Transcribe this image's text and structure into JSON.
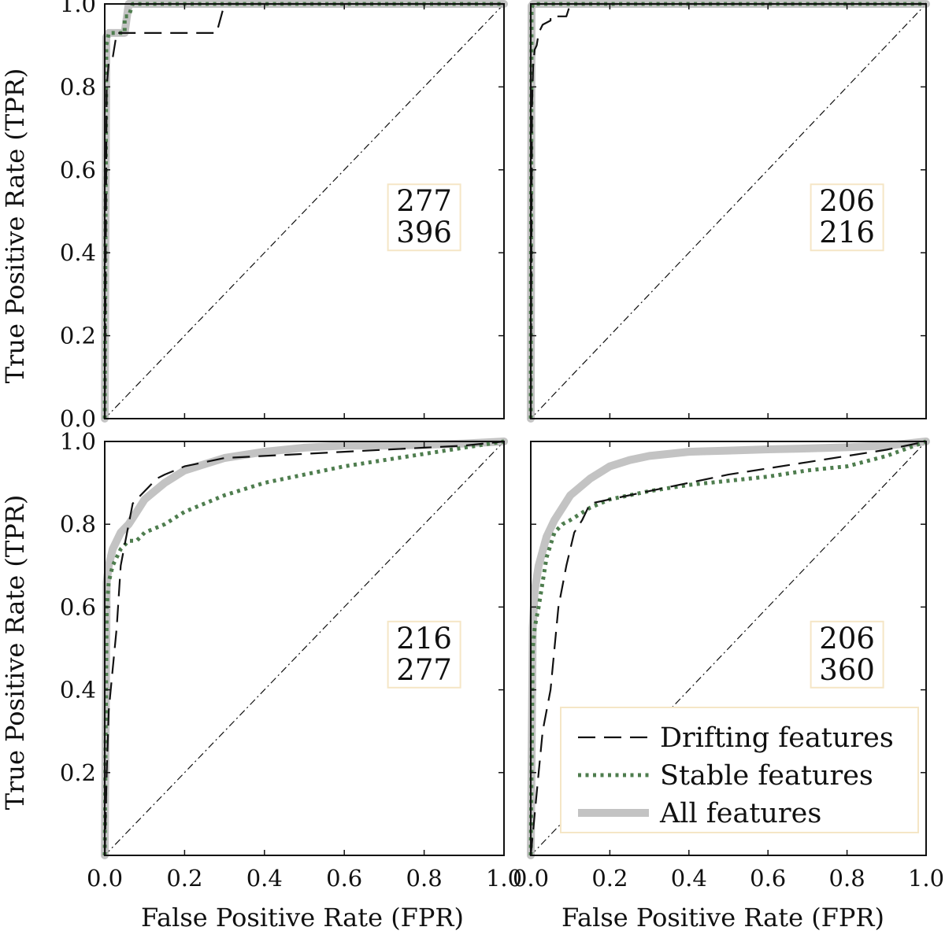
{
  "figure": {
    "colors": {
      "drifting": "#111111",
      "stable": "#4e7d4e",
      "all": "#bdbdbd",
      "diagonal": "#111111",
      "annot_border": "#f5e6c6",
      "ref_line": "#c9d3e3"
    },
    "shared_x_ticks": [
      "0.0",
      "0.2",
      "0.4",
      "0.6",
      "0.8",
      "1.0"
    ],
    "left_y_ticks_top": [
      "0.0",
      "0.2",
      "0.4",
      "0.6",
      "0.8",
      "1.0"
    ],
    "left_y_ticks_bottom": [
      "0.2",
      "0.4",
      "0.6",
      "0.8",
      "1.0"
    ],
    "xlabel": "False Positive Rate (FPR)",
    "ylabel": "True Positive Rate (TPR)",
    "legend": {
      "placement": "lower-right of bottom-right panel",
      "entries": [
        {
          "label": "Drifting features",
          "series": "drifting"
        },
        {
          "label": "Stable features",
          "series": "stable"
        },
        {
          "label": "All features",
          "series": "all"
        }
      ]
    }
  },
  "chart_data": [
    {
      "type": "line",
      "panel": "top-left",
      "annotation": [
        "277",
        "396"
      ],
      "xlim": [
        0,
        1
      ],
      "ylim": [
        0,
        1
      ],
      "diagonal": true,
      "series": [
        {
          "name": "Drifting features",
          "key": "drifting",
          "x": [
            0,
            0.005,
            0.01,
            0.012,
            0.02,
            0.03,
            0.06,
            0.28,
            0.3,
            1.0
          ],
          "y": [
            0,
            0.8,
            0.86,
            0.86,
            0.87,
            0.93,
            0.93,
            0.93,
            1.0,
            1.0
          ]
        },
        {
          "name": "Stable features",
          "key": "stable",
          "x": [
            0,
            0.004,
            0.01,
            0.05,
            0.05,
            0.06,
            0.07,
            1.0
          ],
          "y": [
            0,
            0.9,
            0.93,
            0.93,
            0.97,
            0.97,
            1.0,
            1.0
          ]
        },
        {
          "name": "All features",
          "key": "all",
          "x": [
            0,
            0.004,
            0.01,
            0.05,
            0.06,
            1.0
          ],
          "y": [
            0,
            0.92,
            0.93,
            0.93,
            1.0,
            1.0
          ]
        }
      ]
    },
    {
      "type": "line",
      "panel": "top-right",
      "annotation": [
        "206",
        "216"
      ],
      "xlim": [
        0,
        1
      ],
      "ylim": [
        0,
        1
      ],
      "diagonal": true,
      "series": [
        {
          "name": "Drifting features",
          "key": "drifting",
          "x": [
            0,
            0.003,
            0.006,
            0.01,
            0.015,
            0.02,
            0.03,
            0.05,
            0.05,
            0.09,
            0.1,
            1.0
          ],
          "y": [
            0,
            0.75,
            0.85,
            0.89,
            0.9,
            0.93,
            0.95,
            0.96,
            0.97,
            0.97,
            1.0,
            1.0
          ]
        },
        {
          "name": "Stable features",
          "key": "stable",
          "x": [
            0,
            0.002,
            0.006,
            1.0
          ],
          "y": [
            0,
            0.99,
            1.0,
            1.0
          ]
        },
        {
          "name": "All features",
          "key": "all",
          "x": [
            0,
            0.002,
            0.006,
            1.0
          ],
          "y": [
            0,
            0.995,
            1.0,
            1.0
          ]
        }
      ]
    },
    {
      "type": "line",
      "panel": "bottom-left",
      "annotation": [
        "216",
        "277"
      ],
      "xlim": [
        0,
        1
      ],
      "ylim": [
        0,
        1
      ],
      "diagonal": true,
      "series": [
        {
          "name": "Drifting features",
          "key": "drifting",
          "x": [
            0,
            0.005,
            0.01,
            0.02,
            0.03,
            0.04,
            0.05,
            0.06,
            0.07,
            0.09,
            0.11,
            0.13,
            0.15,
            0.2,
            0.3,
            0.4,
            0.5,
            0.6,
            0.7,
            0.8,
            0.9,
            1.0
          ],
          "y": [
            0,
            0.2,
            0.35,
            0.45,
            0.55,
            0.7,
            0.75,
            0.8,
            0.85,
            0.87,
            0.89,
            0.91,
            0.92,
            0.94,
            0.96,
            0.965,
            0.97,
            0.975,
            0.98,
            0.985,
            0.99,
            1.0
          ]
        },
        {
          "name": "Stable features",
          "key": "stable",
          "x": [
            0,
            0.005,
            0.01,
            0.02,
            0.04,
            0.06,
            0.08,
            0.1,
            0.15,
            0.2,
            0.3,
            0.4,
            0.5,
            0.6,
            0.7,
            0.8,
            0.9,
            1.0
          ],
          "y": [
            0,
            0.6,
            0.66,
            0.7,
            0.74,
            0.76,
            0.76,
            0.78,
            0.8,
            0.83,
            0.87,
            0.9,
            0.92,
            0.94,
            0.955,
            0.97,
            0.985,
            1.0
          ]
        },
        {
          "name": "All features",
          "key": "all",
          "x": [
            0,
            0.005,
            0.01,
            0.02,
            0.04,
            0.06,
            0.08,
            0.1,
            0.15,
            0.2,
            0.3,
            0.4,
            0.5,
            0.6,
            0.7,
            0.8,
            0.9,
            1.0
          ],
          "y": [
            0,
            0.66,
            0.7,
            0.74,
            0.78,
            0.8,
            0.83,
            0.86,
            0.9,
            0.93,
            0.96,
            0.975,
            0.985,
            0.99,
            0.99,
            0.992,
            0.995,
            1.0
          ]
        }
      ]
    },
    {
      "type": "line",
      "panel": "bottom-right",
      "annotation": [
        "206",
        "360"
      ],
      "xlim": [
        0,
        1
      ],
      "ylim": [
        0,
        1
      ],
      "diagonal": true,
      "series": [
        {
          "name": "Drifting features",
          "key": "drifting",
          "x": [
            0,
            0.005,
            0.02,
            0.03,
            0.05,
            0.07,
            0.09,
            0.11,
            0.13,
            0.15,
            0.2,
            0.3,
            0.4,
            0.5,
            0.6,
            0.7,
            0.8,
            0.9,
            1.0
          ],
          "y": [
            0,
            0.05,
            0.2,
            0.3,
            0.4,
            0.6,
            0.7,
            0.78,
            0.81,
            0.85,
            0.86,
            0.88,
            0.9,
            0.92,
            0.935,
            0.95,
            0.965,
            0.98,
            1.0
          ]
        },
        {
          "name": "Stable features",
          "key": "stable",
          "x": [
            0,
            0.005,
            0.01,
            0.02,
            0.04,
            0.06,
            0.08,
            0.1,
            0.15,
            0.2,
            0.3,
            0.4,
            0.5,
            0.6,
            0.7,
            0.8,
            0.9,
            1.0
          ],
          "y": [
            0,
            0.5,
            0.55,
            0.6,
            0.72,
            0.78,
            0.8,
            0.81,
            0.84,
            0.86,
            0.88,
            0.895,
            0.905,
            0.915,
            0.93,
            0.94,
            0.965,
            1.0
          ]
        },
        {
          "name": "All features",
          "key": "all",
          "x": [
            0,
            0.005,
            0.01,
            0.02,
            0.04,
            0.06,
            0.08,
            0.1,
            0.15,
            0.2,
            0.25,
            0.3,
            0.4,
            0.5,
            0.6,
            0.7,
            0.8,
            0.9,
            1.0
          ],
          "y": [
            0,
            0.55,
            0.64,
            0.7,
            0.77,
            0.81,
            0.84,
            0.87,
            0.91,
            0.94,
            0.955,
            0.965,
            0.975,
            0.978,
            0.981,
            0.983,
            0.986,
            0.99,
            1.0
          ]
        }
      ]
    }
  ]
}
